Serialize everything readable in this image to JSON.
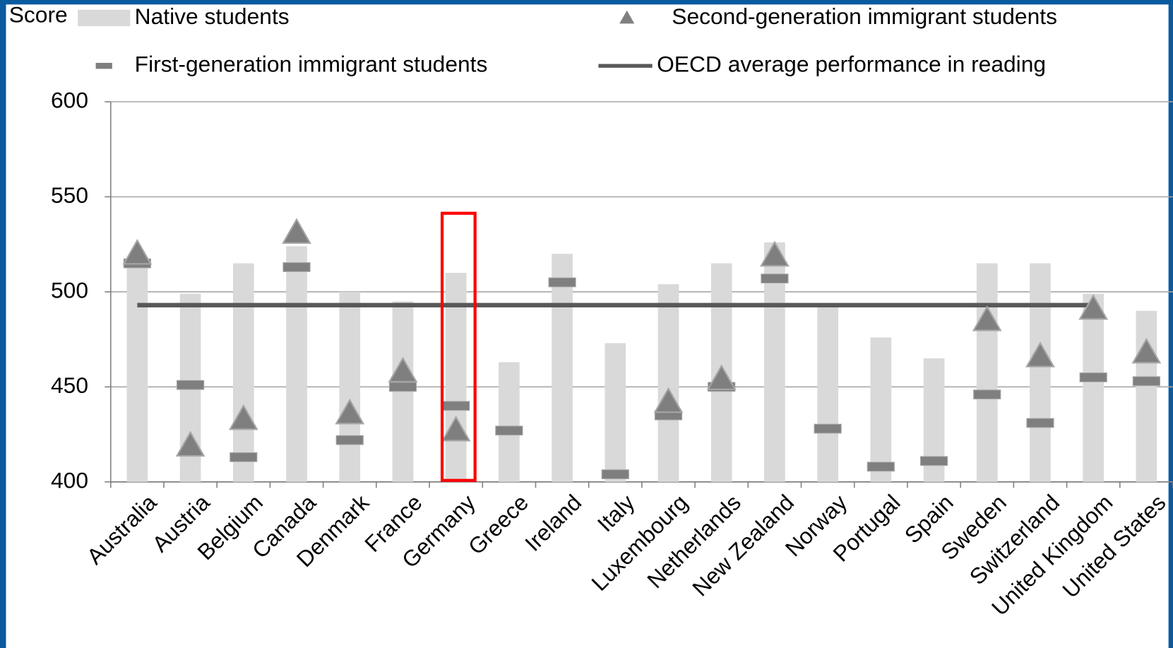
{
  "chart_data": {
    "type": "bar",
    "y_label": "Score",
    "categories": [
      "Australia",
      "Austria",
      "Belgium",
      "Canada",
      "Denmark",
      "France",
      "Germany",
      "Greece",
      "Ireland",
      "Italy",
      "Luxembourg",
      "Netherlands",
      "New Zealand",
      "Norway",
      "Portugal",
      "Spain",
      "Sweden",
      "Switzerland",
      "United Kingdom",
      "United States"
    ],
    "series": [
      {
        "name": "Native students",
        "mark": "bar",
        "color": "#d9d9d9",
        "values": [
          515,
          499,
          515,
          524,
          500,
          495,
          510,
          463,
          520,
          473,
          504,
          515,
          526,
          492,
          476,
          465,
          515,
          515,
          499,
          490
        ]
      },
      {
        "name": "Second-generation immigrant students",
        "mark": "triangle",
        "color": "#7f7f7f",
        "values": [
          520,
          419,
          433,
          531,
          436,
          458,
          427,
          null,
          null,
          null,
          442,
          454,
          519,
          null,
          null,
          null,
          485,
          466,
          491,
          468
        ]
      },
      {
        "name": "First-generation immigrant students",
        "mark": "dash",
        "color": "#7f7f7f",
        "values": [
          515,
          451,
          413,
          513,
          422,
          450,
          440,
          427,
          505,
          404,
          435,
          450,
          507,
          428,
          408,
          411,
          446,
          431,
          455,
          453
        ]
      },
      {
        "name": "OECD average performance in reading",
        "mark": "line",
        "color": "#595959",
        "values": [
          493,
          493,
          493,
          493,
          493,
          493,
          493,
          493,
          493,
          493,
          493,
          493,
          493,
          493,
          493,
          493,
          493,
          493,
          493,
          null
        ]
      }
    ],
    "ylim": [
      400,
      600
    ],
    "yticks": [
      400,
      450,
      500,
      550,
      600
    ],
    "grid": true
  }
}
